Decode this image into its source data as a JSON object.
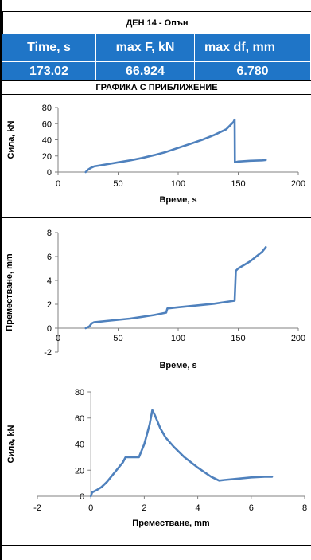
{
  "title": "ДЕН 14 - Опън",
  "summary": {
    "headers": [
      "Time, s",
      "max F, kN",
      "max df, mm"
    ],
    "values": [
      "173.02",
      "66.924",
      "6.780"
    ]
  },
  "section_title": "ГРАФИКА С ПРИБЛИЖЕНИЕ",
  "line_color": "#4f81bd",
  "header_color": "#1f75c7",
  "chart_data": [
    {
      "type": "line",
      "title": "",
      "xlabel": "Време, s",
      "ylabel": "Сила, kN",
      "xlim": [
        0,
        200
      ],
      "ylim": [
        0,
        80
      ],
      "xticks": [
        0,
        50,
        100,
        150,
        200
      ],
      "yticks": [
        0,
        20,
        40,
        60,
        80
      ],
      "grid": false,
      "series": [
        {
          "x": [
            23,
            25,
            27,
            30,
            40,
            50,
            60,
            70,
            80,
            90,
            100,
            110,
            120,
            130,
            140,
            146,
            147,
            147.2,
            150,
            160,
            170,
            173
          ],
          "y": [
            0,
            3,
            5,
            7,
            9.5,
            12,
            14.5,
            17.5,
            21,
            25,
            30,
            35,
            40,
            46,
            53,
            62,
            65,
            12,
            13,
            14,
            14.5,
            15
          ]
        }
      ]
    },
    {
      "type": "line",
      "title": "",
      "xlabel": "Време, s",
      "ylabel": "Преместване, mm",
      "xlim": [
        0,
        200
      ],
      "ylim": [
        -2,
        8
      ],
      "xticks": [
        0,
        50,
        100,
        150,
        200
      ],
      "yticks": [
        -2,
        0,
        2,
        4,
        6,
        8
      ],
      "grid": false,
      "series": [
        {
          "x": [
            23,
            26,
            28,
            30,
            40,
            50,
            60,
            70,
            80,
            90,
            91,
            100,
            110,
            120,
            130,
            140,
            147,
            148,
            150,
            155,
            160,
            165,
            170,
            173
          ],
          "y": [
            0,
            0.15,
            0.4,
            0.5,
            0.6,
            0.7,
            0.8,
            0.95,
            1.1,
            1.3,
            1.65,
            1.75,
            1.85,
            1.95,
            2.05,
            2.2,
            2.3,
            4.8,
            5.0,
            5.3,
            5.6,
            6.0,
            6.4,
            6.78
          ]
        }
      ]
    },
    {
      "type": "line",
      "title": "",
      "xlabel": "Преместване, mm",
      "ylabel": "Сила, kN",
      "xlim": [
        -2,
        8
      ],
      "ylim": [
        0,
        80
      ],
      "xticks": [
        -2,
        0,
        2,
        4,
        6,
        8
      ],
      "yticks": [
        0,
        20,
        40,
        60,
        80
      ],
      "grid": false,
      "series": [
        {
          "x": [
            0,
            0.05,
            0.2,
            0.4,
            0.6,
            0.8,
            1.0,
            1.2,
            1.3,
            1.6,
            1.8,
            2.0,
            2.2,
            2.3,
            2.4,
            2.6,
            2.8,
            3.1,
            3.5,
            4.0,
            4.5,
            4.8,
            5.0,
            5.5,
            6.0,
            6.5,
            6.78
          ],
          "y": [
            0,
            3,
            4.5,
            7,
            11,
            16,
            21,
            26,
            30,
            30,
            30,
            40,
            55,
            66,
            62,
            52,
            45,
            38,
            30,
            22,
            15,
            12,
            12.5,
            13.5,
            14.5,
            15,
            15
          ]
        }
      ]
    }
  ]
}
